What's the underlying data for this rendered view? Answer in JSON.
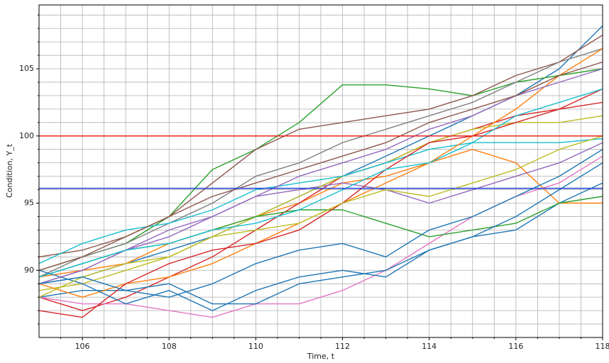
{
  "chart_data": {
    "type": "line",
    "x_label": "Time, t",
    "y_label": "Condition, Y_t",
    "x": [
      105,
      106,
      107,
      108,
      109,
      110,
      111,
      112,
      113,
      114,
      115,
      116,
      117,
      118
    ],
    "xlim": [
      105,
      118
    ],
    "ylim": [
      85,
      109.75
    ],
    "xticks": [
      106,
      108,
      110,
      112,
      114,
      116,
      118
    ],
    "yticks": [
      90,
      95,
      100,
      105
    ],
    "xminorticks": [
      105.5,
      106.5,
      107,
      107.5,
      108.5,
      109,
      109.5,
      110.5,
      111,
      111.5,
      112.5,
      113,
      113.5,
      114.5,
      115,
      115.5,
      116.5,
      117,
      117.5
    ],
    "yminorticks": [
      86,
      87,
      88,
      89,
      91,
      92,
      93,
      94,
      96,
      97,
      98,
      99,
      101,
      102,
      103,
      104,
      106,
      107,
      108,
      109
    ],
    "grid": true,
    "hlines": [
      {
        "value": 100,
        "color": "#e8241c"
      },
      {
        "value": 96.1,
        "color": "#1f3fd8"
      }
    ],
    "series": [
      {
        "color": "#1f77b4",
        "values": [
          89,
          89.5,
          90.5,
          91.5,
          92.5,
          94,
          95.5,
          97,
          98.5,
          100,
          101.5,
          103,
          105,
          108.2
        ]
      },
      {
        "color": "#ff7f0e",
        "values": [
          89.5,
          90,
          90.5,
          92,
          93,
          94,
          95,
          96.5,
          97,
          98,
          99,
          98,
          95,
          95
        ]
      },
      {
        "color": "#2ca02c",
        "values": [
          90,
          91,
          92,
          94,
          97.5,
          99,
          101,
          103.8,
          103.8,
          103.5,
          103,
          104,
          104.5,
          105
        ]
      },
      {
        "color": "#d62728",
        "values": [
          88,
          87,
          88,
          89.5,
          91,
          93,
          95,
          97,
          98,
          99.5,
          100.5,
          101.5,
          102,
          102.5
        ]
      },
      {
        "color": "#9467bd",
        "values": [
          89,
          90,
          91.5,
          93,
          94,
          95.5,
          96,
          96.5,
          96,
          95,
          96,
          97,
          98,
          99.5
        ]
      },
      {
        "color": "#8c564b",
        "values": [
          91,
          91.5,
          92.5,
          94,
          96.5,
          99,
          100.5,
          101,
          101.5,
          102,
          103,
          104.5,
          105.5,
          107.5
        ]
      },
      {
        "color": "#e377c2",
        "values": [
          88,
          87.5,
          87.5,
          87,
          86.5,
          87.5,
          87.5,
          88.5,
          90,
          92,
          94,
          95.5,
          96.5,
          98.5
        ]
      },
      {
        "color": "#7f7f7f",
        "values": [
          89.5,
          91,
          92,
          93.5,
          95,
          97,
          98,
          99.5,
          100.5,
          101.5,
          102.5,
          104,
          105.5,
          106.5
        ]
      },
      {
        "color": "#bcbd22",
        "values": [
          88.5,
          89,
          90,
          91,
          92.5,
          94,
          95.5,
          97,
          98,
          99.5,
          100.5,
          101,
          101,
          101.5
        ]
      },
      {
        "color": "#17becf",
        "values": [
          90.5,
          92,
          93,
          93.5,
          94.5,
          96,
          96.5,
          97,
          98,
          99,
          99.5,
          99.5,
          99.5,
          99.8
        ]
      },
      {
        "color": "#1f77b4",
        "values": [
          88,
          88.5,
          88.5,
          89,
          87.5,
          87.5,
          89,
          89.5,
          90,
          91.5,
          92.5,
          93,
          95,
          96.5
        ]
      },
      {
        "color": "#ff7f0e",
        "values": [
          89,
          88,
          89,
          89.5,
          90.5,
          92,
          93.5,
          95,
          96.5,
          98,
          100,
          102,
          104.5,
          106.5
        ]
      },
      {
        "color": "#2ca02c",
        "values": [
          89.5,
          90.5,
          91.5,
          92,
          93,
          94,
          94.5,
          94.5,
          93.5,
          92.5,
          93,
          93.5,
          95,
          95.5
        ]
      },
      {
        "color": "#d62728",
        "values": [
          87,
          86.5,
          89,
          90.5,
          91.5,
          92,
          93,
          95,
          97.5,
          99.5,
          100,
          101,
          102,
          103.5
        ]
      },
      {
        "color": "#1f77b4",
        "values": [
          90,
          89,
          87.5,
          88.5,
          87,
          88.5,
          89.5,
          90,
          89.5,
          91.5,
          92.5,
          94,
          96,
          98
        ]
      },
      {
        "color": "#9467bd",
        "values": [
          89,
          90,
          91.5,
          92.5,
          94,
          95.5,
          97,
          98,
          99,
          100.5,
          101.5,
          103,
          104,
          105
        ]
      },
      {
        "color": "#17becf",
        "values": [
          89.5,
          90.5,
          91.5,
          92,
          93,
          93.5,
          94.5,
          96,
          97.5,
          98,
          99.5,
          101.5,
          102.5,
          103.5
        ]
      },
      {
        "color": "#bcbd22",
        "values": [
          88,
          89.5,
          90.5,
          91,
          92.5,
          93,
          93.5,
          95,
          96,
          95.5,
          96.5,
          97.5,
          99,
          100
        ]
      },
      {
        "color": "#8c564b",
        "values": [
          90,
          91,
          92.5,
          94,
          95.5,
          96.5,
          97.5,
          98.5,
          99.5,
          101,
          102,
          103,
          104.5,
          105.5
        ]
      },
      {
        "color": "#1f77b4",
        "values": [
          89,
          89.5,
          88.5,
          88,
          89,
          90.5,
          91.5,
          92,
          91,
          93,
          94,
          95.5,
          97,
          99
        ]
      }
    ]
  }
}
